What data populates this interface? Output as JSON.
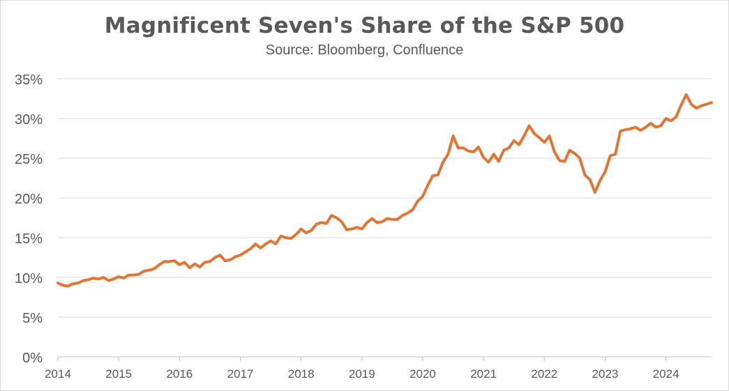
{
  "chart_data": {
    "type": "line",
    "title": "Magnificent Seven's Share of the S&P 500",
    "subtitle": "Source: Bloomberg, Confluence",
    "xlabel": "",
    "ylabel": "",
    "x_ticks": [
      "2014",
      "2015",
      "2016",
      "2017",
      "2018",
      "2019",
      "2020",
      "2021",
      "2022",
      "2023",
      "2024"
    ],
    "y_ticks": [
      "0%",
      "5%",
      "10%",
      "15%",
      "20%",
      "25%",
      "30%",
      "35%"
    ],
    "ylim": [
      0,
      35
    ],
    "xlim": [
      "2014-01",
      "2024-10"
    ],
    "grid": "horizontal",
    "legend": "none",
    "line_color": "#E27533",
    "series": [
      {
        "name": "",
        "x": [
          "2014-01",
          "2014-02",
          "2014-03",
          "2014-04",
          "2014-05",
          "2014-06",
          "2014-07",
          "2014-08",
          "2014-09",
          "2014-10",
          "2014-11",
          "2014-12",
          "2015-01",
          "2015-02",
          "2015-03",
          "2015-04",
          "2015-05",
          "2015-06",
          "2015-07",
          "2015-08",
          "2015-09",
          "2015-10",
          "2015-11",
          "2015-12",
          "2016-01",
          "2016-02",
          "2016-03",
          "2016-04",
          "2016-05",
          "2016-06",
          "2016-07",
          "2016-08",
          "2016-09",
          "2016-10",
          "2016-11",
          "2016-12",
          "2017-01",
          "2017-02",
          "2017-03",
          "2017-04",
          "2017-05",
          "2017-06",
          "2017-07",
          "2017-08",
          "2017-09",
          "2017-10",
          "2017-11",
          "2017-12",
          "2018-01",
          "2018-02",
          "2018-03",
          "2018-04",
          "2018-05",
          "2018-06",
          "2018-07",
          "2018-08",
          "2018-09",
          "2018-10",
          "2018-11",
          "2018-12",
          "2019-01",
          "2019-02",
          "2019-03",
          "2019-04",
          "2019-05",
          "2019-06",
          "2019-07",
          "2019-08",
          "2019-09",
          "2019-10",
          "2019-11",
          "2019-12",
          "2020-01",
          "2020-02",
          "2020-03",
          "2020-04",
          "2020-05",
          "2020-06",
          "2020-07",
          "2020-08",
          "2020-09",
          "2020-10",
          "2020-11",
          "2020-12",
          "2021-01",
          "2021-02",
          "2021-03",
          "2021-04",
          "2021-05",
          "2021-06",
          "2021-07",
          "2021-08",
          "2021-09",
          "2021-10",
          "2021-11",
          "2021-12",
          "2022-01",
          "2022-02",
          "2022-03",
          "2022-04",
          "2022-05",
          "2022-06",
          "2022-07",
          "2022-08",
          "2022-09",
          "2022-10",
          "2022-11",
          "2022-12",
          "2023-01",
          "2023-02",
          "2023-03",
          "2023-04",
          "2023-05",
          "2023-06",
          "2023-07",
          "2023-08",
          "2023-09",
          "2023-10",
          "2023-11",
          "2023-12",
          "2024-01",
          "2024-02",
          "2024-03",
          "2024-04",
          "2024-05",
          "2024-06",
          "2024-07",
          "2024-08",
          "2024-09",
          "2024-10"
        ],
        "values": [
          9.3,
          9.0,
          8.9,
          9.2,
          9.3,
          9.6,
          9.7,
          9.9,
          9.8,
          10.0,
          9.6,
          9.8,
          10.1,
          9.9,
          10.3,
          10.3,
          10.4,
          10.8,
          10.9,
          11.1,
          11.6,
          12.0,
          12.0,
          12.1,
          11.6,
          11.9,
          11.2,
          11.7,
          11.3,
          11.9,
          12.0,
          12.5,
          12.8,
          12.1,
          12.2,
          12.6,
          12.8,
          13.2,
          13.6,
          14.2,
          13.7,
          14.2,
          14.6,
          14.2,
          15.2,
          15.0,
          14.9,
          15.4,
          16.1,
          15.6,
          15.9,
          16.7,
          16.9,
          16.8,
          17.8,
          17.5,
          17.0,
          16.0,
          16.1,
          16.3,
          16.1,
          16.9,
          17.4,
          16.9,
          17.0,
          17.4,
          17.3,
          17.3,
          17.8,
          18.1,
          18.5,
          19.6,
          20.2,
          21.6,
          22.8,
          22.9,
          24.5,
          25.5,
          27.8,
          26.3,
          26.3,
          25.9,
          25.8,
          26.4,
          25.1,
          24.5,
          25.5,
          24.6,
          26.0,
          26.3,
          27.2,
          26.7,
          27.8,
          29.1,
          28.1,
          27.6,
          27.0,
          27.8,
          25.8,
          24.7,
          24.6,
          26.0,
          25.6,
          25.0,
          22.9,
          22.3,
          20.7,
          22.2,
          23.3,
          25.3,
          25.5,
          28.4,
          28.6,
          28.7,
          28.9,
          28.5,
          28.9,
          29.4,
          28.9,
          29.1,
          30.0,
          29.7,
          30.2,
          31.7,
          33.0,
          31.8,
          31.3,
          31.6,
          31.8,
          32.0
        ]
      }
    ]
  }
}
